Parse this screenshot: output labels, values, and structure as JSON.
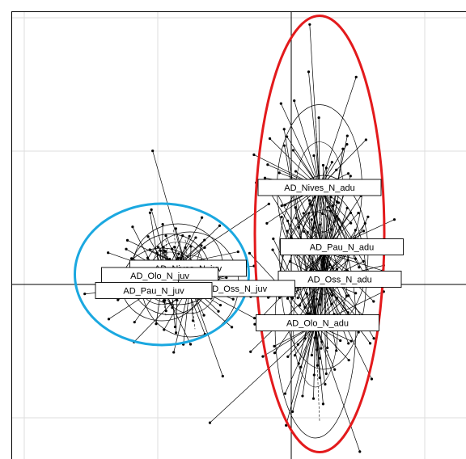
{
  "chart_data": {
    "type": "scatter",
    "title": "",
    "xlabel": "",
    "ylabel": "",
    "xlim": [
      -7,
      4.3
    ],
    "ylim": [
      -4.2,
      6.6
    ],
    "grid": true,
    "axes_origin": [
      0,
      0
    ],
    "grid_spacing": 3.3,
    "groups": [
      {
        "name": "AD_Nives_N_adu",
        "label": "AD_Nives_N_adu",
        "center": [
          0.7,
          2.4
        ],
        "radii": [
          1.05,
          2.05
        ],
        "label_pos": [
          0.7,
          2.4
        ]
      },
      {
        "name": "AD_Pau_N_adu",
        "label": "AD_Pau_N_adu",
        "center": [
          0.8,
          0.8
        ],
        "radii": [
          1.1,
          1.9
        ],
        "label_pos": [
          1.25,
          0.93
        ]
      },
      {
        "name": "AD_Oss_N_adu",
        "label": "AD_Oss_N_adu",
        "center": [
          0.8,
          0.1
        ],
        "radii": [
          1.05,
          2.2
        ],
        "label_pos": [
          1.2,
          0.13
        ]
      },
      {
        "name": "AD_Olo_N_adu",
        "label": "AD_Olo_N_adu",
        "center": [
          0.6,
          -1.0
        ],
        "radii": [
          1.0,
          2.8
        ],
        "label_pos": [
          0.65,
          -0.95
        ]
      },
      {
        "name": "AD_Nives_N_juv",
        "label": "AD_Nives_N_juv",
        "center": [
          -2.8,
          0.5
        ],
        "radii": [
          1.1,
          1.0
        ],
        "label_pos": [
          -2.55,
          0.4
        ]
      },
      {
        "name": "AD_Olo_N_juv",
        "label": "AD_Olo_N_juv",
        "center": [
          -3.0,
          0.25
        ],
        "radii": [
          1.0,
          1.0
        ],
        "label_pos": [
          -3.25,
          0.22
        ]
      },
      {
        "name": "AD_Oss_N_juv",
        "label": "AD_Oss_N_juv",
        "center": [
          -2.5,
          0.0
        ],
        "radii": [
          1.2,
          1.3
        ],
        "label_pos": [
          -1.35,
          -0.1
        ]
      },
      {
        "name": "AD_Pau_N_juv",
        "label": "AD_Pau_N_juv",
        "center": [
          -3.2,
          0.0
        ],
        "radii": [
          1.0,
          0.9
        ],
        "label_pos": [
          -3.4,
          -0.15
        ]
      }
    ],
    "highlights": [
      {
        "name": "adult-highlight",
        "color": "#e31a1c",
        "center": [
          0.7,
          1.25
        ],
        "radii": [
          1.6,
          5.4
        ]
      },
      {
        "name": "juvenile-highlight",
        "color": "#1ba8e0",
        "center": [
          -3.2,
          0.25
        ],
        "radii": [
          2.15,
          1.75
        ]
      }
    ],
    "colors": {
      "points": "#000000",
      "star_lines": "#000000",
      "grid": "#dddddd",
      "frame": "#000000"
    }
  }
}
